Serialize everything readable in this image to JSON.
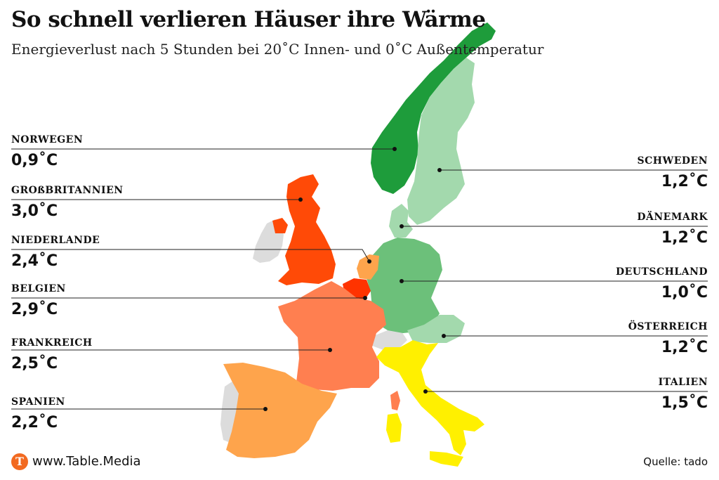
{
  "title": "So schnell verlieren Häuser ihre Wärme",
  "subtitle": "Energieverlust nach 5 Stunden bei 20˚C Innen- und 0˚C Außentemperatur",
  "colors": {
    "norwegen": "#1e9c3b",
    "schweden": "#a3d9ad",
    "daenemark": "#a3d9ad",
    "deutschland": "#6cc07a",
    "oesterreich": "#a3d9ad",
    "italien": "#fff000",
    "spanien": "#fea44c",
    "frankreich": "#ff7f50",
    "belgien": "#ff3300",
    "niederlande": "#fea44c",
    "grossbritannien": "#ff4a07",
    "no_data": "#dcdcdc"
  },
  "countries": {
    "norwegen": {
      "name": "NORWEGEN",
      "value": "0,9˚C"
    },
    "grossbritannien": {
      "name": "GROßBRITANNIEN",
      "value": "3,0˚C"
    },
    "niederlande": {
      "name": "NIEDERLANDE",
      "value": "2,4˚C"
    },
    "belgien": {
      "name": "BELGIEN",
      "value": "2,9˚C"
    },
    "frankreich": {
      "name": "FRANKREICH",
      "value": "2,5˚C"
    },
    "spanien": {
      "name": "SPANIEN",
      "value": "2,2˚C"
    },
    "schweden": {
      "name": "SCHWEDEN",
      "value": "1,2˚C"
    },
    "daenemark": {
      "name": "DÄNEMARK",
      "value": "1,2˚C"
    },
    "deutschland": {
      "name": "DEUTSCHLAND",
      "value": "1,0˚C"
    },
    "oesterreich": {
      "name": "ÖSTERREICH",
      "value": "1,2˚C"
    },
    "italien": {
      "name": "ITALIEN",
      "value": "1,5˚C"
    }
  },
  "footer": {
    "logo_letter": "T",
    "site": "www.Table.Media",
    "source": "Quelle: tado"
  }
}
